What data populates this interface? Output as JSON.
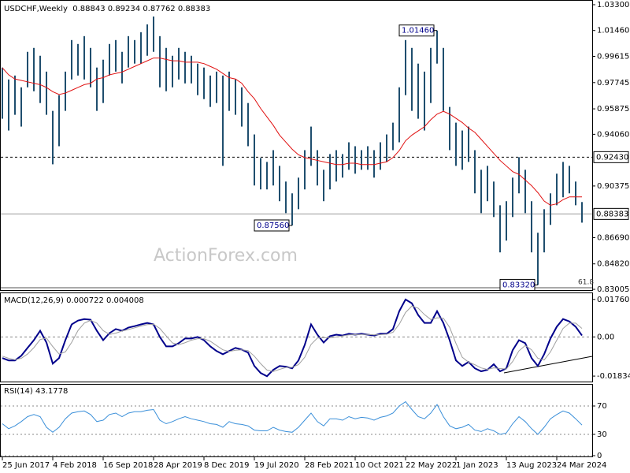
{
  "chart_data": [
    {
      "type": "ohlc",
      "title": "USDCHF,Weekly  0.88843 0.89234 0.87762 0.88383",
      "watermark": "ActionForex.com",
      "categories": [
        "25 Jun 2017",
        null,
        null,
        null,
        null,
        null,
        null,
        null,
        "4 Feb 2018",
        null,
        null,
        null,
        null,
        null,
        null,
        null,
        "16 Sep 2018",
        null,
        null,
        null,
        null,
        null,
        null,
        null,
        "28 Apr 2019",
        null,
        null,
        null,
        null,
        null,
        null,
        null,
        "8 Dec 2019",
        null,
        null,
        null,
        null,
        null,
        null,
        null,
        "19 Jul 2020",
        null,
        null,
        null,
        null,
        null,
        null,
        null,
        "28 Feb 2021",
        null,
        null,
        null,
        null,
        null,
        null,
        null,
        "10 Oct 2021",
        null,
        null,
        null,
        null,
        null,
        null,
        null,
        "22 May 2022",
        null,
        null,
        null,
        null,
        null,
        null,
        null,
        "1 Jan 2023",
        null,
        null,
        null,
        null,
        null,
        null,
        null,
        "13 Aug 2023",
        null,
        null,
        null,
        null,
        null,
        null,
        null,
        "24 Mar 2024",
        null,
        null,
        null,
        null
      ],
      "highs": [
        0.9882,
        0.9797,
        0.9825,
        0.9741,
        0.9994,
        1.0022,
        0.9966,
        0.9853,
        0.9573,
        0.9685,
        0.9853,
        1.0078,
        1.005,
        1.0106,
        1.0022,
        0.9882,
        0.9938,
        1.005,
        1.0078,
        0.9994,
        1.0106,
        1.0078,
        1.0134,
        1.019,
        1.0246,
        1.0106,
        1.0022,
        0.9966,
        1.0022,
        0.9994,
        0.9966,
        0.991,
        0.9882,
        0.9825,
        0.9853,
        0.9825,
        0.9853,
        0.9797,
        0.9741,
        0.9629,
        0.9405,
        0.9237,
        0.9209,
        0.9293,
        0.9181,
        0.9069,
        0.8985,
        0.9097,
        0.9293,
        0.9461,
        0.9293,
        0.9153,
        0.9265,
        0.9293,
        0.9265,
        0.9349,
        0.9321,
        0.9293,
        0.9321,
        0.9293,
        0.9349,
        0.9405,
        0.9489,
        0.9741,
        1.0078,
        1.0022,
        0.991,
        0.9853,
        1.0022,
        1.0146,
        1.0022,
        0.9601,
        0.9489,
        0.9433,
        0.9461,
        0.9293,
        0.9153,
        0.9181,
        0.9069,
        0.89,
        0.8929,
        0.9097,
        0.9243,
        0.9153,
        0.8929,
        0.8704,
        0.8872,
        0.8985,
        0.9125,
        0.9209,
        0.9181,
        0.9069,
        0.8923
      ],
      "lows": [
        0.9517,
        0.9433,
        0.9545,
        0.9461,
        0.9741,
        0.9713,
        0.9629,
        0.9545,
        0.9192,
        0.9321,
        0.9573,
        0.9797,
        0.9825,
        0.9797,
        0.9741,
        0.9573,
        0.9629,
        0.9825,
        0.9853,
        0.9769,
        0.9882,
        0.991,
        0.991,
        0.9966,
        0.9994,
        0.9741,
        0.9713,
        0.9741,
        0.9797,
        0.9769,
        0.9769,
        0.9685,
        0.9657,
        0.9601,
        0.9629,
        0.9181,
        0.9573,
        0.9545,
        0.9461,
        0.9321,
        0.9041,
        0.9013,
        0.9013,
        0.9041,
        0.8929,
        0.8844,
        0.8756,
        0.8872,
        0.9013,
        0.9181,
        0.9041,
        0.8929,
        0.9013,
        0.9069,
        0.9097,
        0.9153,
        0.9125,
        0.9153,
        0.9153,
        0.9097,
        0.9153,
        0.9209,
        0.9293,
        0.9349,
        0.9685,
        0.9573,
        0.9517,
        0.9433,
        0.9629,
        0.991,
        0.9573,
        0.9293,
        0.9181,
        0.9153,
        0.9209,
        0.8985,
        0.8844,
        0.8929,
        0.8816,
        0.8564,
        0.8648,
        0.8816,
        0.8985,
        0.8844,
        0.8564,
        0.8332,
        0.8564,
        0.876,
        0.89,
        0.8957,
        0.8985,
        0.89,
        0.8776
      ],
      "bar_color": "#1f4e6e",
      "ma_values": [
        0.988,
        0.983,
        0.98,
        0.979,
        0.978,
        0.977,
        0.976,
        0.974,
        0.971,
        0.969,
        0.97,
        0.972,
        0.974,
        0.976,
        0.977,
        0.98,
        0.981,
        0.983,
        0.984,
        0.985,
        0.987,
        0.989,
        0.991,
        0.993,
        0.995,
        0.995,
        0.994,
        0.993,
        0.993,
        0.992,
        0.992,
        0.992,
        0.991,
        0.989,
        0.987,
        0.984,
        0.981,
        0.98,
        0.977,
        0.971,
        0.966,
        0.959,
        0.953,
        0.947,
        0.94,
        0.935,
        0.93,
        0.926,
        0.924,
        0.923,
        0.922,
        0.921,
        0.92,
        0.919,
        0.919,
        0.92,
        0.92,
        0.919,
        0.919,
        0.919,
        0.92,
        0.921,
        0.924,
        0.929,
        0.936,
        0.94,
        0.943,
        0.946,
        0.951,
        0.955,
        0.957,
        0.955,
        0.952,
        0.949,
        0.945,
        0.942,
        0.937,
        0.932,
        0.927,
        0.922,
        0.918,
        0.914,
        0.912,
        0.908,
        0.904,
        0.899,
        0.893,
        0.89,
        0.891,
        0.894,
        0.896,
        0.896,
        0.896
      ],
      "ma_color": "#e01010",
      "ylim": [
        0.8295,
        1.0358
      ],
      "yticks": [
        {
          "value": 1.033,
          "label": "1.03300"
        },
        {
          "value": 1.0146,
          "label": "1.01460"
        },
        {
          "value": 0.99615,
          "label": "0.99615"
        },
        {
          "value": 0.97745,
          "label": "0.97745"
        },
        {
          "value": 0.95875,
          "label": "0.95875"
        },
        {
          "value": 0.9406,
          "label": "0.94060"
        },
        {
          "value": 0.90375,
          "label": "0.90375"
        },
        {
          "value": 0.8669,
          "label": "0.86690"
        },
        {
          "value": 0.8482,
          "label": "0.84820"
        },
        {
          "value": 0.83005,
          "label": "0.83005"
        }
      ],
      "levels": [
        {
          "value": 0.9243,
          "label": "0.92430",
          "style": "dashed"
        },
        {
          "value": 0.88383,
          "label": "0.88383",
          "style": "solid"
        }
      ],
      "annotations": [
        {
          "value": 1.0146,
          "label": "1.01460"
        },
        {
          "value": 0.8756,
          "label": "0.87560"
        },
        {
          "value": 0.8332,
          "label": "0.83320"
        }
      ],
      "fib_level": {
        "value": 0.8312,
        "label": "61.8"
      }
    },
    {
      "type": "line",
      "title": "MACD(12,26,9) 0.000722 0.004008",
      "series": [
        {
          "color": "#00008b",
          "width": 2,
          "values": [
            -0.0099,
            -0.011,
            -0.011,
            -0.0088,
            -0.0051,
            -0.0015,
            0.0029,
            -0.0026,
            -0.0125,
            -0.0099,
            -0.0015,
            0.0059,
            0.0077,
            0.0084,
            0.0081,
            0.0029,
            -0.0015,
            0.0018,
            0.0037,
            0.0029,
            0.0044,
            0.0051,
            0.0059,
            0.0066,
            0.0059,
            0.0,
            -0.0044,
            -0.0044,
            -0.0029,
            -0.0007,
            -0.0007,
            0.0,
            -0.0015,
            -0.0044,
            -0.0066,
            -0.0081,
            -0.0066,
            -0.0051,
            -0.0059,
            -0.0073,
            -0.0136,
            -0.0169,
            -0.0184,
            -0.0154,
            -0.0136,
            -0.0139,
            -0.0147,
            -0.011,
            -0.0037,
            0.0059,
            0.0011,
            -0.0026,
            0.0004,
            0.0011,
            0.0007,
            0.0015,
            0.0011,
            0.0015,
            0.0011,
            0.0007,
            0.0015,
            0.0015,
            0.0037,
            0.0121,
            0.0176,
            0.0158,
            0.0103,
            0.0066,
            0.0066,
            0.0121,
            0.0066,
            -0.0015,
            -0.011,
            -0.0136,
            -0.0117,
            -0.0147,
            -0.0161,
            -0.0154,
            -0.0128,
            -0.0161,
            -0.0147,
            -0.0062,
            -0.0015,
            -0.0029,
            -0.0099,
            -0.0136,
            -0.0081,
            -0.0007,
            0.0048,
            0.0084,
            0.0073,
            0.0048,
            0.0007
          ]
        },
        {
          "color": "#a0a0a0",
          "width": 1,
          "values": [
            -0.009,
            -0.01,
            -0.0107,
            -0.01,
            -0.008,
            -0.005,
            -0.0012,
            -0.0005,
            -0.0045,
            -0.008,
            -0.007,
            -0.0025,
            0.003,
            0.0065,
            0.0078,
            0.0065,
            0.003,
            0.0012,
            0.0018,
            0.0028,
            0.0035,
            0.0043,
            0.0051,
            0.0058,
            0.006,
            0.004,
            0.0005,
            -0.0028,
            -0.0036,
            -0.0027,
            -0.0015,
            -0.0008,
            -0.0008,
            -0.002,
            -0.004,
            -0.006,
            -0.0068,
            -0.0062,
            -0.006,
            -0.0064,
            -0.009,
            -0.0125,
            -0.0155,
            -0.0162,
            -0.0152,
            -0.0143,
            -0.0142,
            -0.013,
            -0.0095,
            -0.0035,
            -0.0005,
            -0.0003,
            -0.0004,
            0.0,
            0.0005,
            0.001,
            0.0011,
            0.0012,
            0.0012,
            0.001,
            0.0011,
            0.0013,
            0.0022,
            0.006,
            0.0115,
            0.0145,
            0.0135,
            0.0105,
            0.0082,
            0.009,
            0.0088,
            0.0045,
            -0.003,
            -0.0095,
            -0.0118,
            -0.013,
            -0.0145,
            -0.0152,
            -0.0145,
            -0.0148,
            -0.015,
            -0.0115,
            -0.0065,
            -0.004,
            -0.006,
            -0.01,
            -0.0108,
            -0.007,
            -0.0015,
            0.004,
            0.0065,
            0.0065,
            0.004
          ]
        }
      ],
      "ylim": [
        -0.0209,
        0.0205
      ],
      "yticks": [
        0.017603,
        {
          "value": 0,
          "label": "0.00"
        },
        -0.01834
      ],
      "zero_line": true
    },
    {
      "type": "line",
      "title": "RSI(14) 43.1778",
      "series": [
        {
          "color": "#3a8fd9",
          "width": 1,
          "values": [
            45,
            38,
            42,
            48,
            55,
            58,
            55,
            40,
            33,
            40,
            52,
            60,
            62,
            63,
            58,
            48,
            50,
            58,
            60,
            55,
            60,
            62,
            62,
            64,
            65,
            50,
            45,
            48,
            52,
            55,
            52,
            50,
            48,
            45,
            44,
            40,
            48,
            45,
            44,
            42,
            36,
            35,
            35,
            40,
            36,
            34,
            33,
            40,
            50,
            60,
            48,
            42,
            52,
            52,
            50,
            55,
            52,
            54,
            53,
            50,
            54,
            56,
            60,
            70,
            76,
            65,
            55,
            52,
            60,
            72,
            55,
            42,
            38,
            40,
            44,
            36,
            34,
            38,
            35,
            30,
            32,
            45,
            55,
            48,
            38,
            30,
            40,
            52,
            58,
            63,
            60,
            52,
            43.18
          ]
        }
      ],
      "ylim": [
        0,
        100
      ],
      "yticks": [
        70,
        30,
        0
      ],
      "grid": "dotted"
    }
  ]
}
